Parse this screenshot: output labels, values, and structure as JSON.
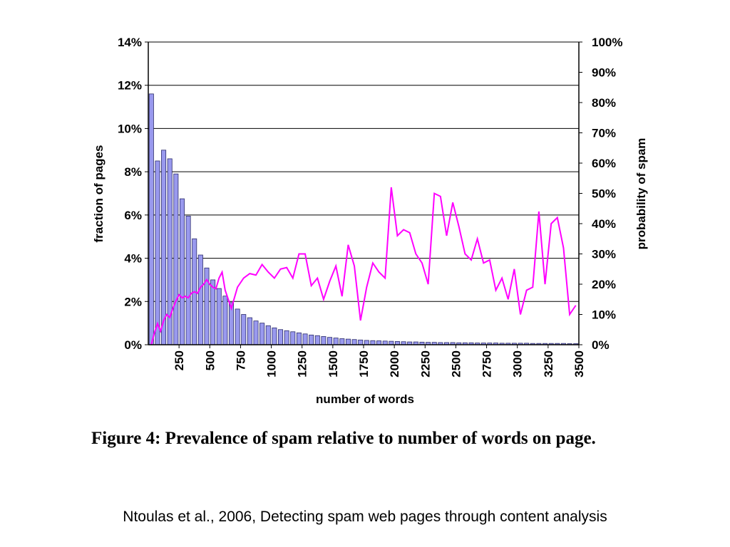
{
  "chart_data": {
    "type": "bar+line",
    "title": "",
    "xlabel": "number of words",
    "ylabel_left": "fraction of pages",
    "ylabel_right": "probability of spam",
    "x_tick_labels": [
      "250",
      "500",
      "750",
      "1000",
      "1250",
      "1500",
      "1750",
      "2000",
      "2250",
      "2500",
      "2750",
      "3000",
      "3250",
      "3500"
    ],
    "x_tick_values": [
      250,
      500,
      750,
      1000,
      1250,
      1500,
      1750,
      2000,
      2250,
      2500,
      2750,
      3000,
      3250,
      3500
    ],
    "left_axis": {
      "ylim": [
        0,
        14
      ],
      "unit": "%",
      "ticks": [
        0,
        2,
        4,
        6,
        8,
        10,
        12,
        14
      ],
      "tick_labels": [
        "0%",
        "2%",
        "4%",
        "6%",
        "8%",
        "10%",
        "12%",
        "14%"
      ]
    },
    "right_axis": {
      "ylim": [
        0,
        100
      ],
      "unit": "%",
      "ticks": [
        0,
        10,
        20,
        30,
        40,
        50,
        60,
        70,
        80,
        90,
        100
      ],
      "tick_labels": [
        "0%",
        "10%",
        "20%",
        "30%",
        "40%",
        "50%",
        "60%",
        "70%",
        "80%",
        "90%",
        "100%"
      ]
    },
    "grid": "horizontal, left-axis major ticks",
    "bar_series": {
      "axis": "left",
      "color": "#9999ee",
      "x": [
        25,
        75,
        125,
        175,
        225,
        275,
        325,
        375,
        425,
        475,
        525,
        575,
        625,
        675,
        725,
        775,
        825,
        875,
        925,
        975,
        1025,
        1075,
        1125,
        1175,
        1225,
        1275,
        1325,
        1375,
        1425,
        1475,
        1525,
        1575,
        1625,
        1675,
        1725,
        1775,
        1825,
        1875,
        1925,
        1975,
        2025,
        2075,
        2125,
        2175,
        2225,
        2275,
        2325,
        2375,
        2425,
        2475,
        2525,
        2575,
        2625,
        2675,
        2725,
        2775,
        2825,
        2875,
        2925,
        2975,
        3025,
        3075,
        3125,
        3175,
        3225,
        3275,
        3325,
        3375,
        3425,
        3475
      ],
      "values": [
        11.6,
        8.5,
        9.0,
        8.6,
        7.9,
        6.75,
        5.95,
        4.9,
        4.15,
        3.55,
        3.0,
        2.6,
        2.25,
        1.95,
        1.65,
        1.4,
        1.25,
        1.1,
        1.0,
        0.88,
        0.78,
        0.7,
        0.65,
        0.6,
        0.55,
        0.5,
        0.45,
        0.42,
        0.38,
        0.34,
        0.31,
        0.28,
        0.26,
        0.24,
        0.22,
        0.2,
        0.19,
        0.18,
        0.17,
        0.16,
        0.15,
        0.14,
        0.13,
        0.13,
        0.12,
        0.11,
        0.11,
        0.1,
        0.1,
        0.1,
        0.09,
        0.09,
        0.09,
        0.08,
        0.08,
        0.08,
        0.08,
        0.07,
        0.07,
        0.07,
        0.07,
        0.07,
        0.06,
        0.06,
        0.06,
        0.06,
        0.06,
        0.06,
        0.05,
        0.05
      ]
    },
    "line_series": {
      "axis": "right",
      "color": "#ff00ff",
      "x": [
        25,
        50,
        75,
        100,
        125,
        150,
        175,
        200,
        225,
        250,
        275,
        300,
        325,
        350,
        375,
        400,
        425,
        450,
        475,
        500,
        525,
        550,
        575,
        600,
        625,
        675,
        725,
        775,
        825,
        875,
        925,
        975,
        1025,
        1075,
        1125,
        1175,
        1225,
        1275,
        1325,
        1375,
        1425,
        1475,
        1525,
        1575,
        1625,
        1675,
        1725,
        1775,
        1825,
        1875,
        1925,
        1975,
        2025,
        2075,
        2125,
        2175,
        2225,
        2275,
        2325,
        2375,
        2425,
        2475,
        2525,
        2575,
        2625,
        2675,
        2725,
        2775,
        2825,
        2875,
        2925,
        2975,
        3025,
        3075,
        3125,
        3175,
        3225,
        3275,
        3325,
        3375,
        3425,
        3475
      ],
      "values": [
        0,
        4,
        7,
        4.5,
        8,
        10,
        9,
        12,
        14.5,
        16.5,
        15.5,
        16,
        15.5,
        17,
        17.5,
        17,
        19,
        20,
        21.5,
        20,
        19,
        18.5,
        22,
        24,
        18,
        12,
        19,
        22,
        23.5,
        23,
        26.5,
        24,
        22,
        25,
        25.5,
        22,
        30,
        30,
        19.5,
        22,
        15,
        21,
        26,
        16,
        33,
        26,
        8,
        19,
        27,
        24,
        22,
        52,
        36,
        38,
        37,
        30,
        27,
        20,
        50,
        49,
        36,
        47,
        39,
        30,
        28,
        35,
        27,
        28,
        18,
        22,
        15,
        25,
        10,
        18,
        19,
        44,
        20,
        40,
        42,
        32,
        10,
        13
      ]
    }
  },
  "caption": "Figure 4:  Prevalence of spam relative to number of words on page.",
  "source": "Ntoulas et al., 2006, Detecting spam web pages through content analysis"
}
